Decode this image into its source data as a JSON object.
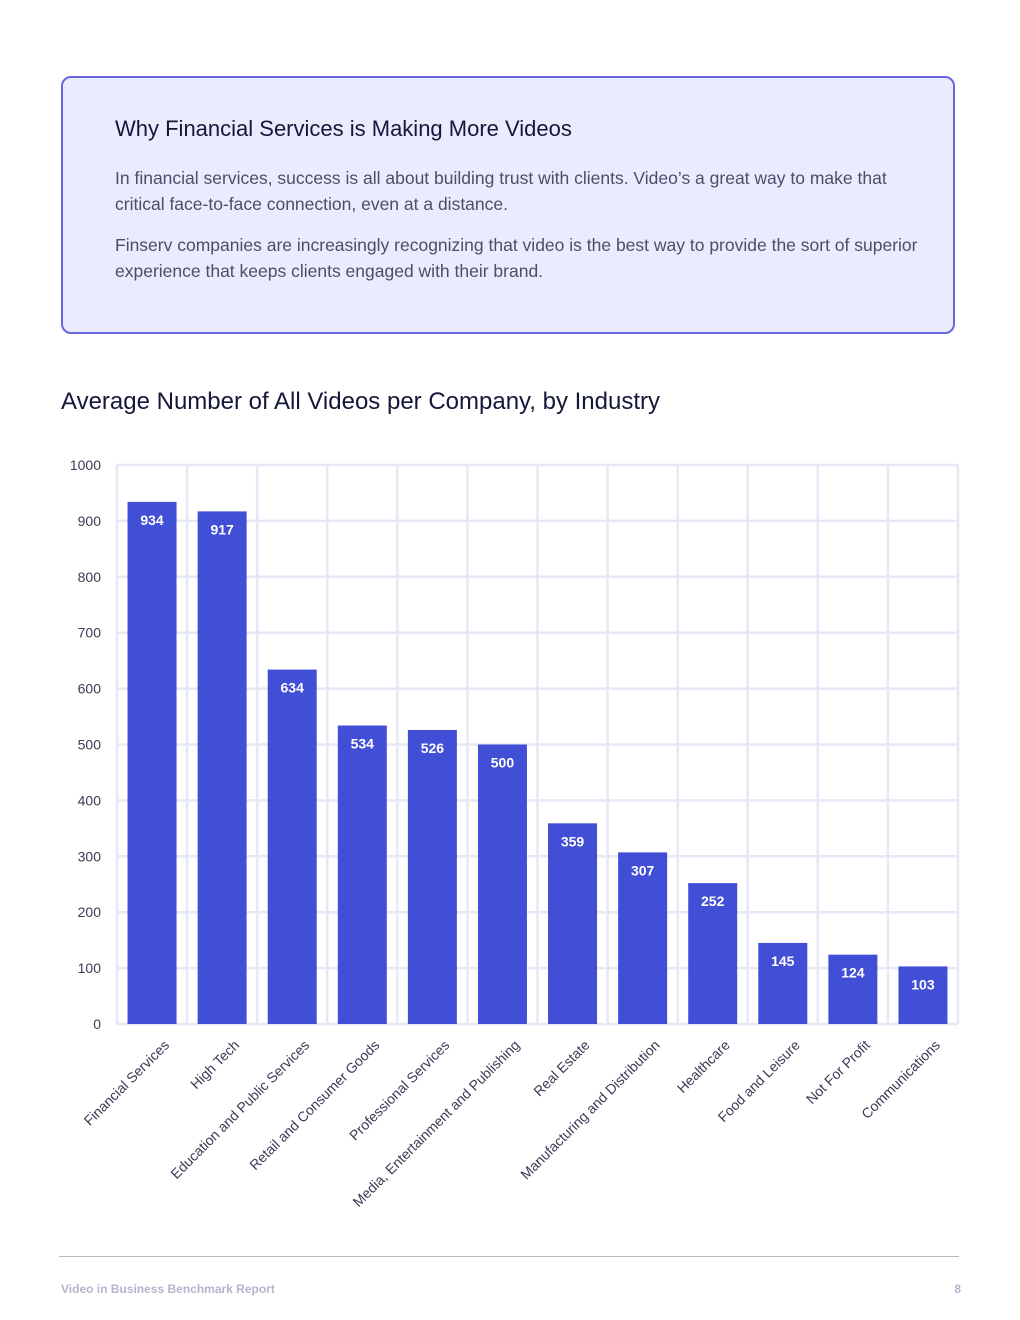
{
  "callout": {
    "title": "Why Financial Services is Making More Videos",
    "paragraph1": "In financial services, success is all about building trust with clients. Video’s a great way to make that critical face-to-face connection, even at a distance.",
    "paragraph2": "Finserv companies are increasingly recognizing that video is the best way to provide the sort of superior experience that keeps clients engaged with their brand."
  },
  "chart_data": {
    "type": "bar",
    "title": "Average Number of All Videos per Company, by Industry",
    "categories": [
      "Financial Services",
      "High Tech",
      "Education and Public Services",
      "Retail and Consumer Goods",
      "Professional Services",
      "Media, Entertainment and Publishing",
      "Real Estate",
      "Manufacturing and Distribution",
      "Healthcare",
      "Food and Leisure",
      "Not For Profit",
      "Communications"
    ],
    "values": [
      934,
      917,
      634,
      534,
      526,
      500,
      359,
      307,
      252,
      145,
      124,
      103
    ],
    "ylim": [
      0,
      1000
    ],
    "yticks": [
      0,
      100,
      200,
      300,
      400,
      500,
      600,
      700,
      800,
      900,
      1000
    ],
    "grid": true,
    "data_labels": true,
    "colors": {
      "bar": "#414ed6",
      "grid": "#e7e8f6",
      "label": "#ffffff",
      "tick": "#3a3c55"
    }
  },
  "footer": {
    "report_name": "Video in Business Benchmark Report",
    "page_number": "8"
  }
}
